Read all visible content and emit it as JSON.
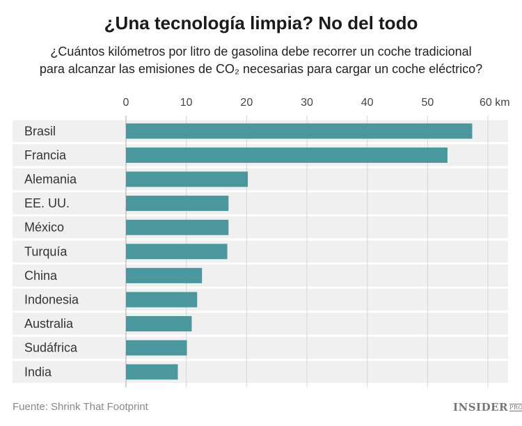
{
  "title": "¿Una tecnología limpia? No del todo",
  "subtitle_line1": "¿Cuántos kilómetros por litro de gasolina debe recorrer un coche tradicional",
  "subtitle_line2": "para alcanzar las emisiones de CO₂ necesarias para cargar un coche eléctrico?",
  "source": "Fuente: Shrink That Footprint",
  "logo": "INSIDER PRO",
  "chart_data": {
    "type": "bar",
    "orientation": "horizontal",
    "categories": [
      "Brasil",
      "Francia",
      "Alemania",
      "EE. UU.",
      "México",
      "Turquía",
      "China",
      "Indonesia",
      "Australia",
      "Sudáfrica",
      "India"
    ],
    "values": [
      57.4,
      53.3,
      20.2,
      17.0,
      17.0,
      16.8,
      12.6,
      11.8,
      10.9,
      10.1,
      8.6
    ],
    "xlim": [
      0,
      60
    ],
    "ticks": [
      0,
      10,
      20,
      30,
      40,
      50,
      60
    ],
    "tick_labels": [
      "0",
      "10",
      "20",
      "30",
      "40",
      "50",
      "60 km"
    ],
    "axis_position": "top",
    "grid": true,
    "bar_color": "#4a989d",
    "row_background": "#f0f0f0"
  }
}
